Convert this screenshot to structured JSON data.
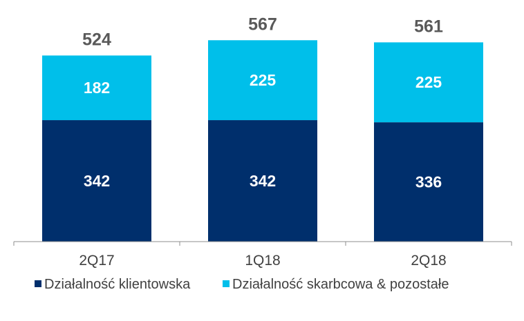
{
  "chart_data": {
    "type": "bar",
    "stacked": true,
    "categories": [
      "2Q17",
      "1Q18",
      "2Q18"
    ],
    "series": [
      {
        "name": "Działalność klientowska",
        "values": [
          342,
          342,
          336
        ],
        "color": "#002f6c"
      },
      {
        "name": "Działalność skarbcowa & pozostałe",
        "values": [
          182,
          225,
          225
        ],
        "color": "#00bfea"
      }
    ],
    "totals": [
      524,
      567,
      561
    ],
    "ylim": [
      0,
      600
    ],
    "grid": false,
    "legend_position": "bottom",
    "title": "",
    "xlabel": "",
    "ylabel": ""
  }
}
